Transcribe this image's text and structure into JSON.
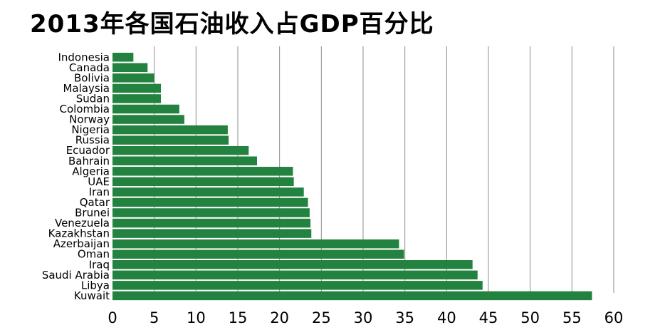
{
  "title": "2013年各国石油收入占GDP百分比",
  "colors": {
    "bar": "#23823f",
    "grid": "#8c8c8c",
    "text": "#000000"
  },
  "chart_data": {
    "type": "bar",
    "orientation": "horizontal",
    "title": "2013年各国石油收入占GDP百分比",
    "xlabel": "",
    "ylabel": "",
    "xlim": [
      0,
      60
    ],
    "xticks": [
      0,
      5,
      10,
      15,
      20,
      25,
      30,
      35,
      40,
      45,
      50,
      55,
      60
    ],
    "grid": "vertical",
    "legend": "none",
    "categories": [
      "Indonesia",
      "Canada",
      "Bolivia",
      "Malaysia",
      "Sudan",
      "Colombia",
      "Norway",
      "Nigeria",
      "Russia",
      "Ecuador",
      "Bahrain",
      "Algeria",
      "UAE",
      "Iran",
      "Qatar",
      "Brunei",
      "Venezuela",
      "Kazakhstan",
      "Azerbaijan",
      "Oman",
      "Iraq",
      "Saudi Arabia",
      "Libya",
      "Kuwait"
    ],
    "values": [
      2.5,
      4.2,
      5.0,
      5.8,
      5.8,
      8.0,
      8.6,
      13.8,
      13.9,
      16.3,
      17.3,
      21.6,
      21.7,
      22.9,
      23.4,
      23.6,
      23.7,
      23.8,
      34.3,
      34.9,
      43.1,
      43.7,
      44.3,
      57.4
    ]
  }
}
